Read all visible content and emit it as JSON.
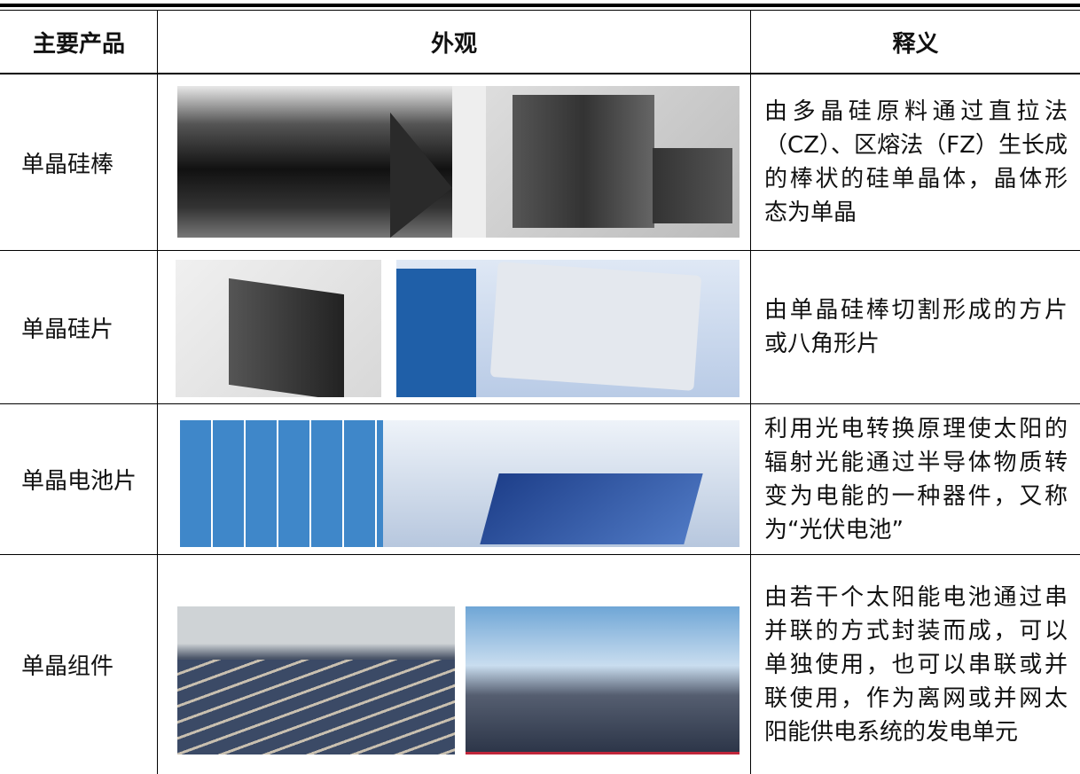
{
  "table": {
    "header": [
      "主要产品",
      "外观",
      "释义"
    ],
    "rows": [
      {
        "name": "单晶硅棒",
        "description": [
          "由多晶硅原料通过直拉法",
          "（CZ）、区熔法（FZ）生长成",
          "的棒状的硅单晶体，晶体形",
          "态为单晶"
        ]
      },
      {
        "name": "单晶硅片",
        "description": [
          "由单晶硅棒切割形成的方片",
          "或八角形片"
        ]
      },
      {
        "name": "单晶电池片",
        "description": [
          "利用光电转换原理使太阳的",
          "辐射光能通过半导体物质转",
          "变为电能的一种器件，又称",
          "为“光伏电池”"
        ]
      },
      {
        "name": "单晶组件",
        "description": [
          "由若干个太阳能电池通过串",
          "并联的方式封装而成，可以",
          "单独使用，也可以串联或并",
          "联使用，作为离网或并网太",
          "阳能供电系统的发电单元"
        ]
      }
    ]
  }
}
